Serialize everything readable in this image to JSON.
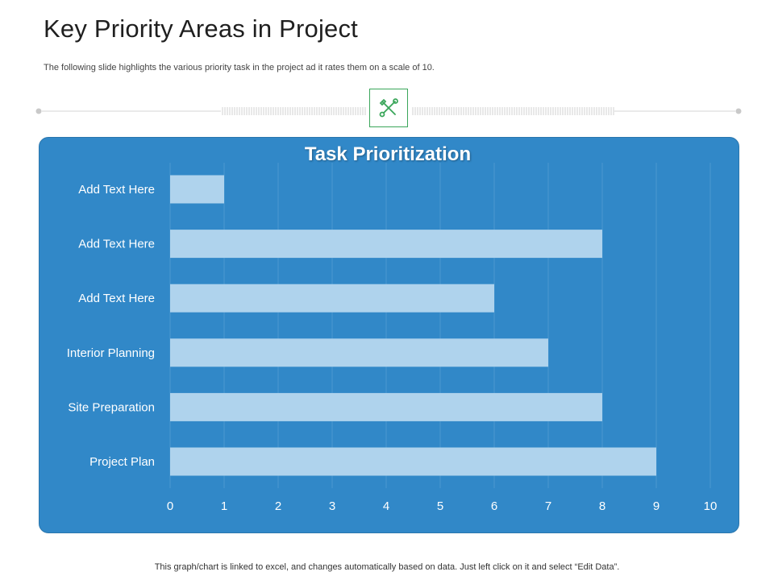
{
  "header": {
    "title": "Key Priority Areas in Project",
    "subtitle": "The following slide highlights the various priority task in the project ad it rates them on a scale of 10."
  },
  "icon": "tools-icon",
  "footnote": "This graph/chart is linked to excel, and changes automatically based on data. Just left click on it and select “Edit Data”.",
  "colors": {
    "panel": "#3188c8",
    "bar": "#afd3ed",
    "icon_accent": "#3aa65a"
  },
  "chart_data": {
    "type": "bar",
    "orientation": "horizontal",
    "title": "Task Prioritization",
    "categories": [
      "Add Text Here",
      "Add Text Here",
      "Add Text Here",
      "Interior Planning",
      "Site Preparation",
      "Project Plan"
    ],
    "values": [
      1,
      8,
      6,
      7,
      8,
      9
    ],
    "xlim": [
      0,
      10
    ],
    "xticks": [
      "0",
      "1",
      "2",
      "3",
      "4",
      "5",
      "6",
      "7",
      "8",
      "9",
      "10"
    ],
    "grid": true,
    "legend": "none"
  }
}
